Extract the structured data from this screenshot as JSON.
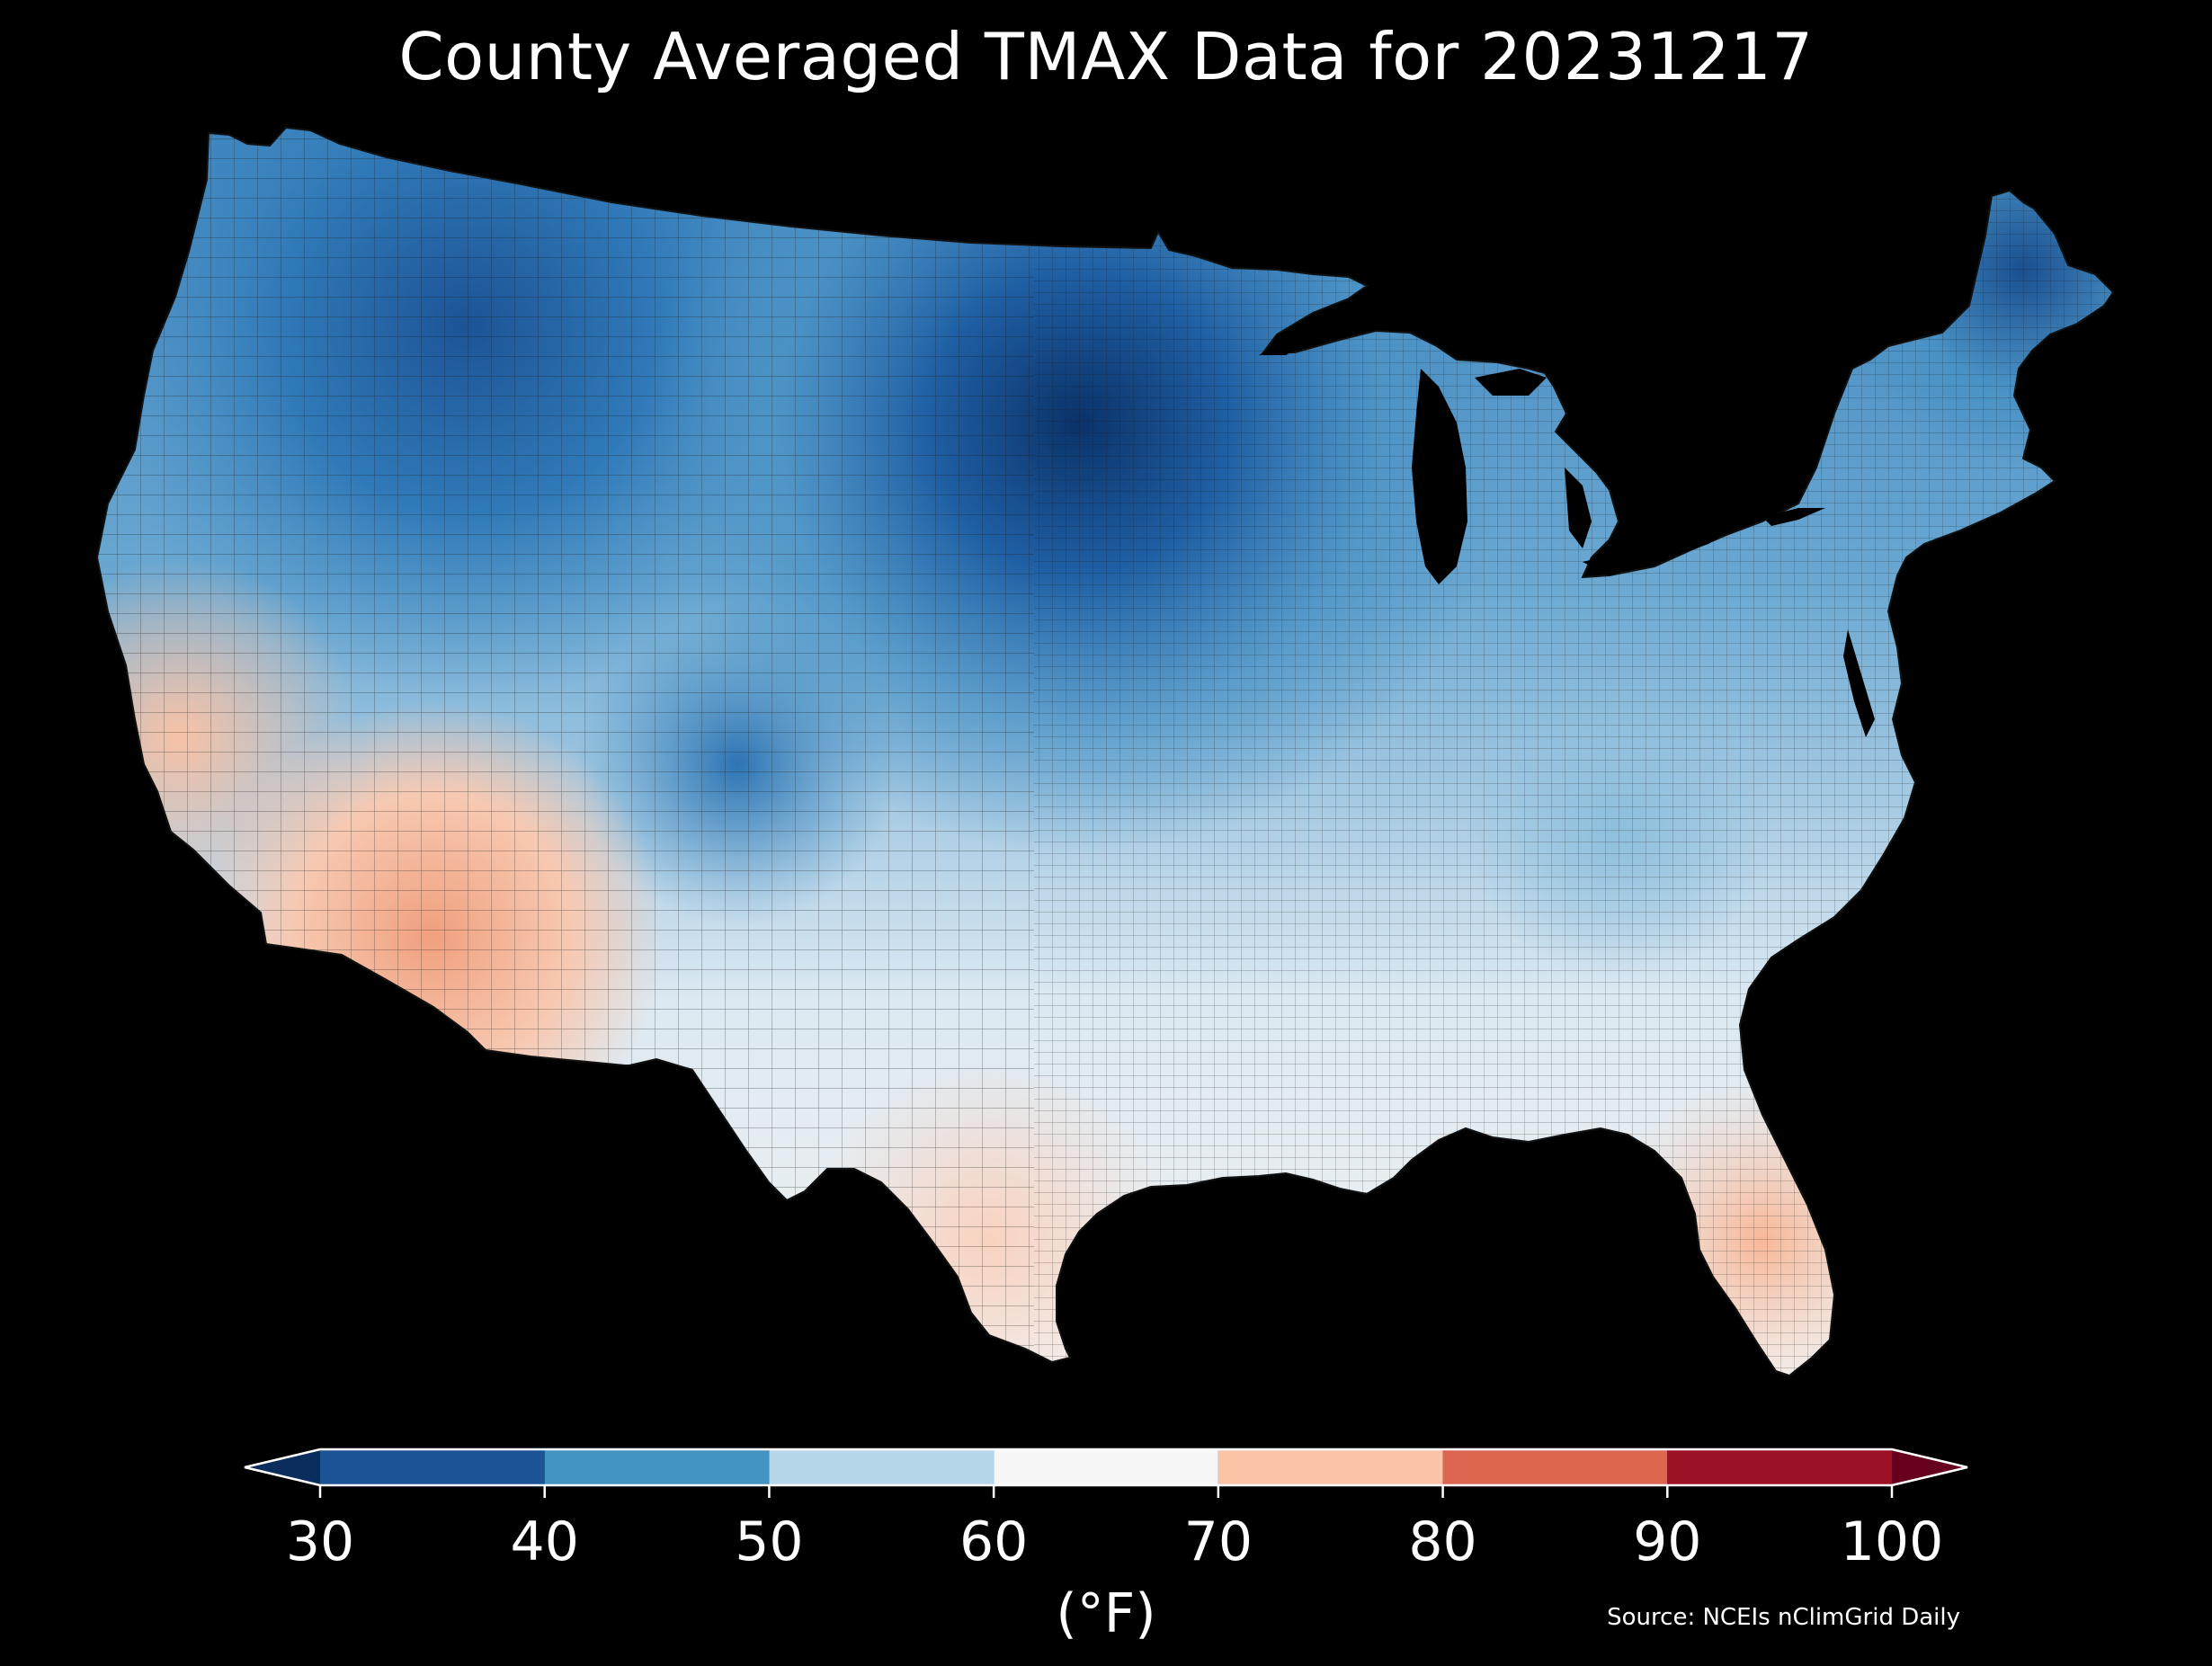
{
  "title": "County Averaged TMAX Data for 20231217",
  "colorbar": {
    "ticks": [
      "30",
      "40",
      "50",
      "60",
      "70",
      "80",
      "90",
      "100"
    ],
    "unit": "(°F)",
    "bins": [
      {
        "from": 30,
        "to": 40,
        "color": "#1c5496"
      },
      {
        "from": 40,
        "to": 50,
        "color": "#4393c3"
      },
      {
        "from": 50,
        "to": 60,
        "color": "#b6d6e9"
      },
      {
        "from": 60,
        "to": 70,
        "color": "#f7f7f7"
      },
      {
        "from": 70,
        "to": 80,
        "color": "#fbc4a7"
      },
      {
        "from": 80,
        "to": 90,
        "color": "#dc6650"
      },
      {
        "from": 90,
        "to": 100,
        "color": "#9b1025"
      }
    ],
    "under_color": "#0a2d5e",
    "over_color": "#67001f"
  },
  "source": "Source: NCEIs nClimGrid Daily",
  "map_colors": {
    "background": "#000000",
    "lakes": "#000000",
    "county_lines": "#1a1a1a"
  }
}
